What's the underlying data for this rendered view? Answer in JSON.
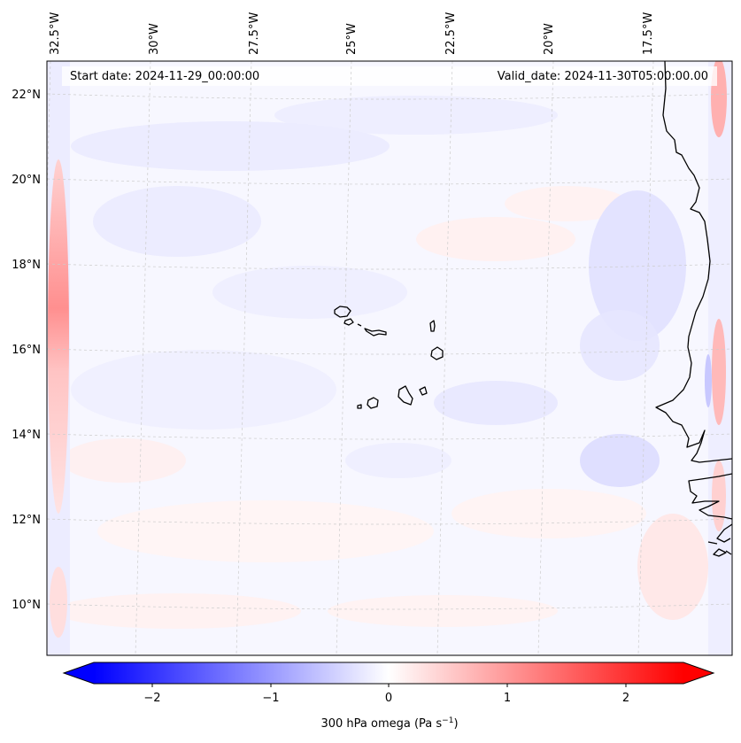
{
  "map": {
    "header": {
      "start_date": "Start date: 2024-11-29_00:00:00",
      "valid_date": "Valid_date: 2024-11-30T05:00:00.00"
    },
    "lon_labels": [
      "32.5°W",
      "30°W",
      "27.5°W",
      "25°W",
      "22.5°W",
      "20°W",
      "17.5°W"
    ],
    "lat_labels": [
      "22°N",
      "20°N",
      "18°N",
      "16°N",
      "14°N",
      "12°N",
      "10°N"
    ],
    "colorbar": {
      "ticks": [
        "−2",
        "−1",
        "0",
        "1",
        "2"
      ],
      "label": "300 hPa omega (Pa s",
      "label_sup": "−1",
      "label_close": ")",
      "vmin": -2.6,
      "vmax": 2.6,
      "colors": {
        "low": "#0000ff",
        "mid": "#ffffff",
        "high": "#ff0000"
      }
    },
    "islands": [
      "Santo Antão",
      "São Vicente",
      "Santa Luzia",
      "São Nicolau",
      "Sal",
      "Boa Vista",
      "Maio",
      "Santiago",
      "Fogo",
      "Brava"
    ]
  }
}
